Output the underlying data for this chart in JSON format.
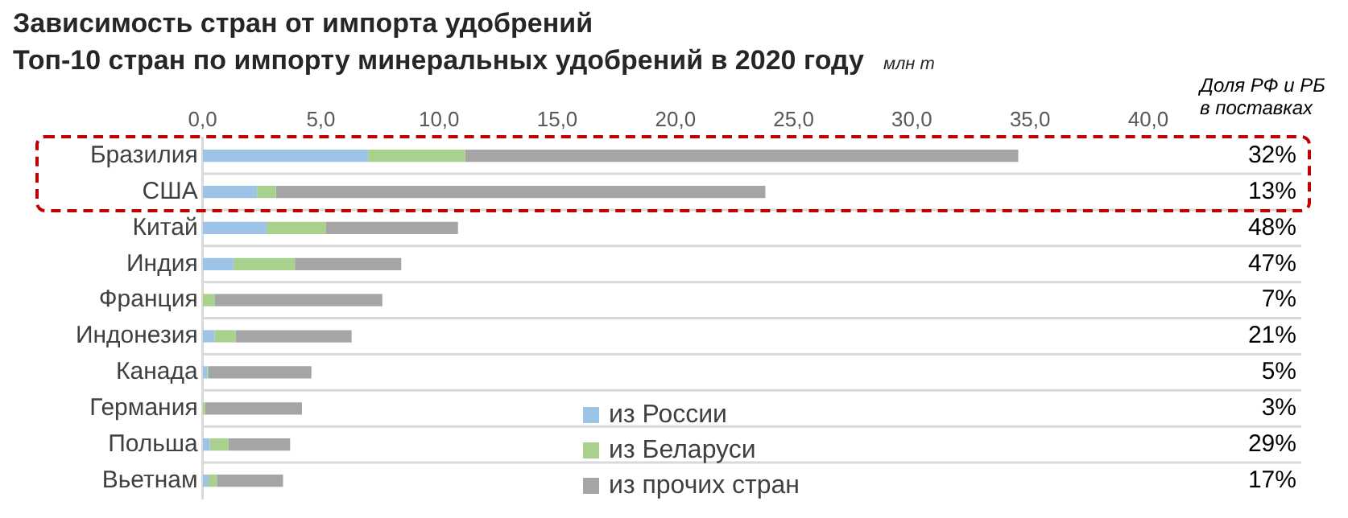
{
  "chart_data": {
    "type": "bar",
    "orientation": "horizontal",
    "stacked": true,
    "title": "Зависимость стран от импорта удобрений",
    "subtitle": "Топ-10 стран по импорту минеральных удобрений в 2020 году",
    "xlabel": "млн т",
    "categories": [
      "Бразилия",
      "США",
      "Китай",
      "Индия",
      "Франция",
      "Индонезия",
      "Канада",
      "Германия",
      "Польша",
      "Вьетнам"
    ],
    "series": [
      {
        "name": "из России",
        "color": "#9dc3e6",
        "values": [
          7.0,
          2.3,
          2.7,
          1.3,
          0.0,
          0.5,
          0.2,
          0.0,
          0.3,
          0.25
        ]
      },
      {
        "name": "из Беларуси",
        "color": "#a9d18e",
        "values": [
          4.1,
          0.8,
          2.5,
          2.6,
          0.5,
          0.9,
          0.05,
          0.1,
          0.8,
          0.35
        ]
      },
      {
        "name": "из прочих стран",
        "color": "#a5a5a5",
        "values": [
          23.4,
          20.7,
          5.6,
          4.5,
          7.1,
          4.9,
          4.35,
          4.1,
          2.6,
          2.8
        ]
      }
    ],
    "xlim": [
      0,
      40
    ],
    "xticks": [
      {
        "value": 0,
        "label": "0,0"
      },
      {
        "value": 5,
        "label": "5,0"
      },
      {
        "value": 10,
        "label": "10,0"
      },
      {
        "value": 15,
        "label": "15,0"
      },
      {
        "value": 20,
        "label": "20,0"
      },
      {
        "value": 25,
        "label": "25,0"
      },
      {
        "value": 30,
        "label": "30,0"
      },
      {
        "value": 35,
        "label": "35,0"
      },
      {
        "value": 40,
        "label": "40,0"
      }
    ],
    "grid": "y",
    "legend": "bottom",
    "annotations": [
      "Доля РФ и РБ в поставках",
      "32%",
      "13%",
      "48%",
      "47%",
      "7%",
      "21%",
      "5%",
      "3%",
      "29%",
      "17%"
    ]
  }
}
